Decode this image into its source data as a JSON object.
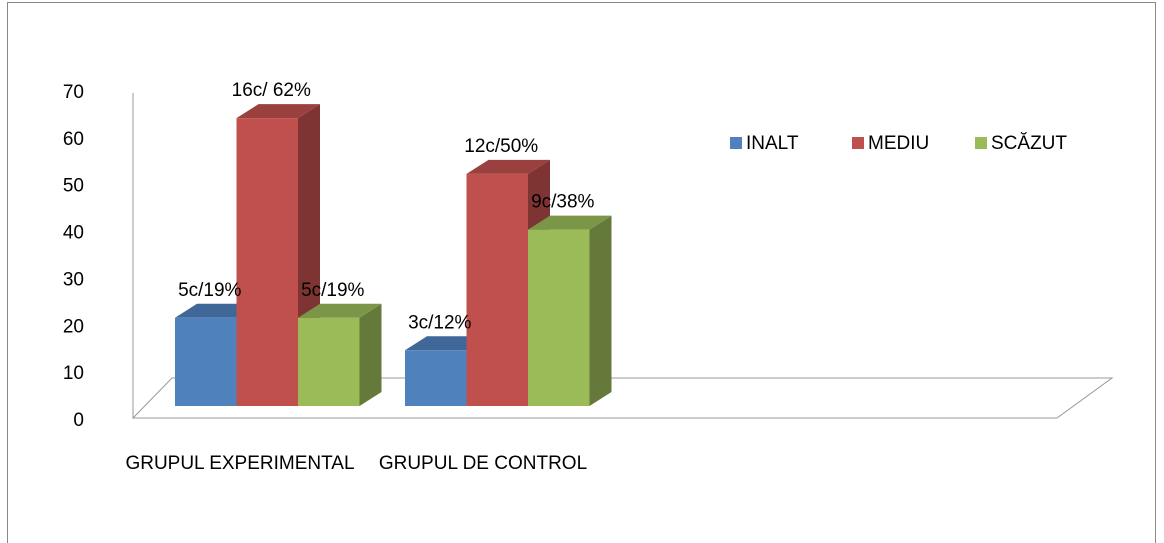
{
  "chart_data": {
    "type": "bar3d",
    "categories": [
      "GRUPUL EXPERIMENTAL",
      "GRUPUL DE CONTROL"
    ],
    "series": [
      {
        "name": "INALT",
        "color": "#4f81bd",
        "values": [
          19,
          12
        ],
        "value_labels": [
          "5c/19%",
          "3c/12%"
        ]
      },
      {
        "name": "MEDIU",
        "color": "#c0504d",
        "values": [
          62,
          50
        ],
        "value_labels": [
          "16c/ 62%",
          "12c/50%"
        ]
      },
      {
        "name": "SCĂZUT",
        "color": "#9bbb59",
        "values": [
          19,
          38
        ],
        "value_labels": [
          "5c/19%",
          "9c/38%"
        ]
      }
    ],
    "ylim": [
      0,
      70
    ],
    "yticks": [
      0,
      10,
      20,
      30,
      40,
      50,
      60,
      70
    ],
    "grid": false,
    "legend": "right"
  }
}
